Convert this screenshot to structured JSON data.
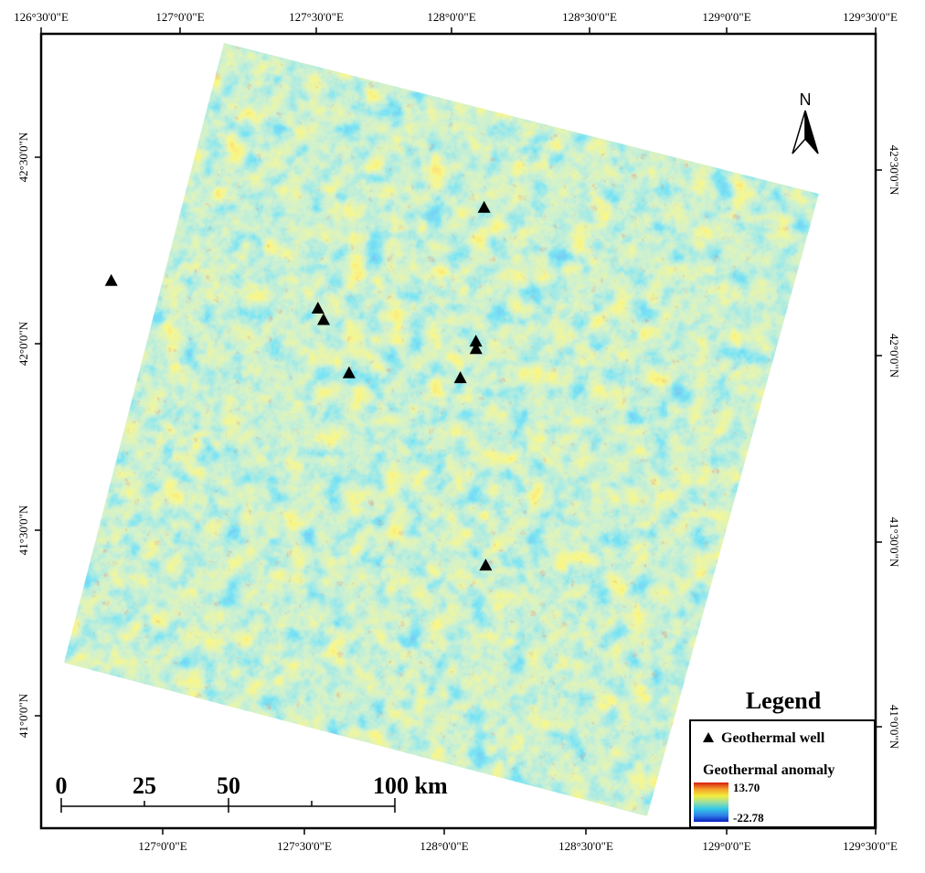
{
  "map": {
    "top_lon_labels": [
      "126°30'0\"E",
      "127°0'0\"E",
      "127°30'0\"E",
      "128°0'0\"E",
      "128°30'0\"E",
      "129°0'0\"E",
      "129°30'0\"E"
    ],
    "bottom_lon_labels": [
      "127°0'0\"E",
      "127°30'0\"E",
      "128°0'0\"E",
      "128°30'0\"E",
      "129°0'0\"E",
      "129°30'0\"E"
    ],
    "left_lat_labels": [
      "42°30'0\"N",
      "42°0'0\"N",
      "41°30'0\"N",
      "41°0'0\"N"
    ],
    "right_lat_labels": [
      "42°30'0\"N",
      "42°0'0\"N",
      "41°30'0\"N",
      "41°0'0\"N"
    ],
    "north_label": "N",
    "wells": [
      {
        "lon": 128.13,
        "lat": 42.37
      },
      {
        "lon": 126.75,
        "lat": 42.13
      },
      {
        "lon": 127.51,
        "lat": 42.08
      },
      {
        "lon": 127.53,
        "lat": 42.05
      },
      {
        "lon": 127.62,
        "lat": 41.91
      },
      {
        "lon": 128.03,
        "lat": 41.91
      },
      {
        "lon": 128.09,
        "lat": 42.01
      },
      {
        "lon": 128.09,
        "lat": 41.99
      },
      {
        "lon": 128.11,
        "lat": 41.41
      }
    ]
  },
  "legend": {
    "title": "Legend",
    "well_label": "Geothermal well",
    "anomaly_label": "Geothermal anomaly",
    "max_value": "13.70",
    "min_value": "-22.78",
    "colormap": [
      "#0a1fbf",
      "#2f7fe8",
      "#33c8e6",
      "#9fe0a0",
      "#f2ee3c",
      "#f4a12a",
      "#d81e10"
    ]
  },
  "scale_bar": {
    "labels": [
      "0",
      "25",
      "50",
      "100 km"
    ]
  }
}
